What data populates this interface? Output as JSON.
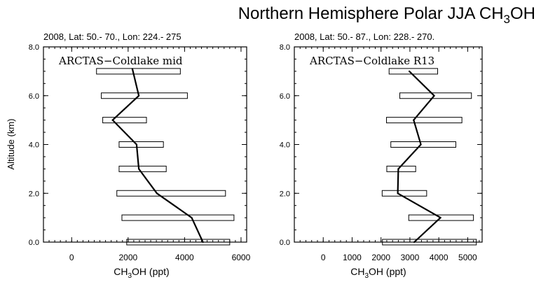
{
  "figure": {
    "title_main": "Northern Hemisphere Polar JJA CH",
    "title_sub": "3",
    "title_end": "OH",
    "ylabel": "Altitude (km)"
  },
  "chart_data": [
    {
      "type": "line",
      "header": "2008, Lat:  50.- 70., Lon: 224.- 275",
      "label": "ARCTAS−Coldlake mid",
      "xlabel_main": "CH",
      "xlabel_sub": "3",
      "xlabel_end": "OH (ppt)",
      "ylabel": "Altitude (km)",
      "xlim": [
        -1000,
        6200
      ],
      "ylim": [
        0,
        8
      ],
      "xticks": [
        0,
        2000,
        4000,
        6000
      ],
      "yticks": [
        0.0,
        2.0,
        4.0,
        6.0,
        8.0
      ],
      "ytick_labels": [
        "0.0",
        "2.0",
        "4.0",
        "6.0",
        "8.0"
      ],
      "profile": [
        {
          "alt": 0.0,
          "x": 4650
        },
        {
          "alt": 1.0,
          "x": 4250
        },
        {
          "alt": 2.0,
          "x": 3020
        },
        {
          "alt": 3.0,
          "x": 2380
        },
        {
          "alt": 4.0,
          "x": 2300
        },
        {
          "alt": 5.0,
          "x": 1450
        },
        {
          "alt": 6.0,
          "x": 2380
        },
        {
          "alt": 7.1,
          "x": 2150
        }
      ],
      "ranges": [
        {
          "alt": 0.0,
          "lo": 1950,
          "hi": 5600
        },
        {
          "alt": 1.0,
          "lo": 1780,
          "hi": 5750
        },
        {
          "alt": 2.0,
          "lo": 1600,
          "hi": 5450
        },
        {
          "alt": 3.0,
          "lo": 1680,
          "hi": 3350
        },
        {
          "alt": 4.0,
          "lo": 1680,
          "hi": 3250
        },
        {
          "alt": 5.0,
          "lo": 1100,
          "hi": 2650
        },
        {
          "alt": 6.0,
          "lo": 1050,
          "hi": 4100
        },
        {
          "alt": 7.0,
          "lo": 880,
          "hi": 3850
        }
      ]
    },
    {
      "type": "line",
      "header": "2008, Lat:  50.- 87., Lon: 228.- 270.",
      "label": "ARCTAS−Coldlake R13",
      "xlabel_main": "CH",
      "xlabel_sub": "3",
      "xlabel_end": "OH (ppt)",
      "ylabel": "",
      "xlim": [
        -1000,
        5500
      ],
      "ylim": [
        0,
        8
      ],
      "xticks": [
        0,
        1000,
        2000,
        3000,
        4000,
        5000
      ],
      "yticks": [
        0.0,
        2.0,
        4.0,
        6.0,
        8.0
      ],
      "ytick_labels": [
        "0.0",
        "2.0",
        "4.0",
        "6.0",
        "8.0"
      ],
      "profile": [
        {
          "alt": 0.0,
          "x": 3150
        },
        {
          "alt": 1.0,
          "x": 4060
        },
        {
          "alt": 2.0,
          "x": 2580
        },
        {
          "alt": 3.0,
          "x": 2600
        },
        {
          "alt": 4.0,
          "x": 3380
        },
        {
          "alt": 5.0,
          "x": 3130
        },
        {
          "alt": 6.0,
          "x": 3840
        },
        {
          "alt": 7.0,
          "x": 2980
        }
      ],
      "ranges": [
        {
          "alt": 0.0,
          "lo": 2050,
          "hi": 5300
        },
        {
          "alt": 1.0,
          "lo": 2960,
          "hi": 5200
        },
        {
          "alt": 2.0,
          "lo": 2040,
          "hi": 3580
        },
        {
          "alt": 3.0,
          "lo": 2200,
          "hi": 3200
        },
        {
          "alt": 4.0,
          "lo": 2340,
          "hi": 4590
        },
        {
          "alt": 5.0,
          "lo": 2190,
          "hi": 4800
        },
        {
          "alt": 6.0,
          "lo": 2650,
          "hi": 5130
        },
        {
          "alt": 7.0,
          "lo": 2280,
          "hi": 3960
        }
      ]
    }
  ]
}
